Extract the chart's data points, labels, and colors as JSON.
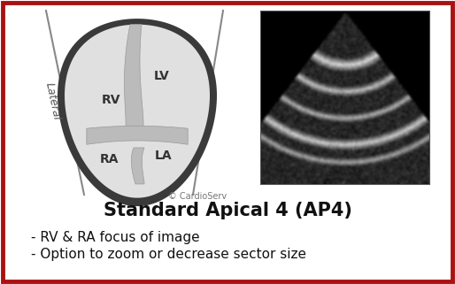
{
  "title": "Standard Apical 4 (AP4)",
  "bullet1": "- RV & RA focus of image",
  "bullet2": "- Option to zoom or decrease sector size",
  "copyright": "© CardioServ",
  "lateral_label": "Lateral",
  "lv_label": "LV",
  "rv_label": "RV",
  "ra_label": "RA",
  "la_label": "LA",
  "bg_color": "#ffffff",
  "border_color": "#aa1111",
  "heart_outer_color": "#4a4a4a",
  "heart_fill_color": "#e0e0e0",
  "wall_color": "#c8c8c8",
  "septum_color": "#aaaaaa",
  "title_fontsize": 15,
  "bullet_fontsize": 11,
  "label_fontsize": 10,
  "lateral_fontsize": 9,
  "copyright_fontsize": 7
}
